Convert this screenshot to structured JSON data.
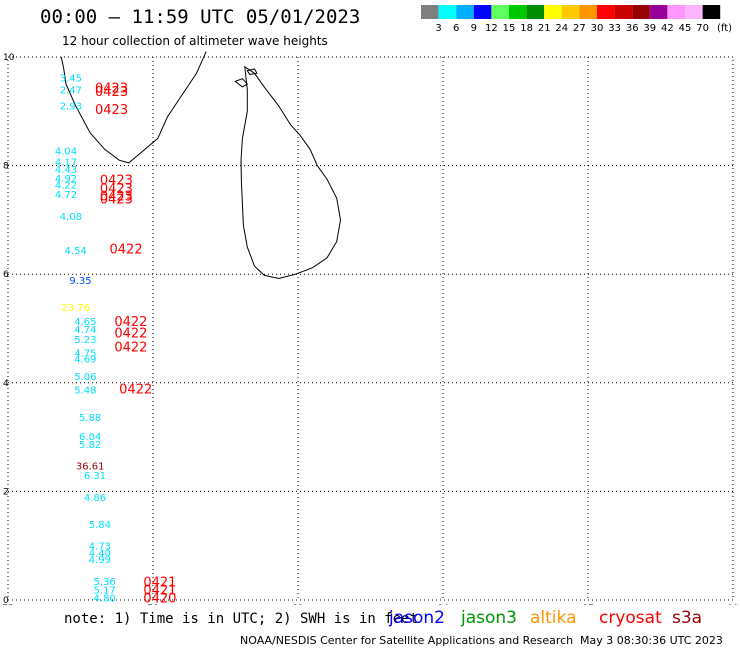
{
  "title": "00:00 – 11:59 UTC 05/01/2023",
  "subtitle": "12 hour collection of altimeter wave heights",
  "colorbar": {
    "unit": "(ft)",
    "colors": [
      "#808080",
      "#00ffff",
      "#00b0ff",
      "#0000ff",
      "#60ff60",
      "#00c800",
      "#008c00",
      "#ffff00",
      "#ffc800",
      "#ff9600",
      "#ff0000",
      "#c80000",
      "#960000",
      "#960096",
      "#ff96ff",
      "#ffb4ff",
      "#000000"
    ],
    "labels": [
      "3",
      "6",
      "9",
      "12",
      "15",
      "18",
      "21",
      "24",
      "27",
      "30",
      "33",
      "36",
      "39",
      "42",
      "45",
      "70"
    ]
  },
  "map": {
    "lon_range": [
      75,
      90
    ],
    "lat_range": [
      0,
      10
    ],
    "x_ticks": [
      75,
      78,
      81,
      84,
      87,
      90
    ],
    "y_ticks": [
      0,
      2,
      4,
      6,
      8,
      10
    ],
    "x_tick_labels": [
      "75",
      "78",
      "81",
      "84",
      "87",
      "90"
    ],
    "y_tick_labels": [
      "0",
      "2",
      "4",
      "6",
      "8",
      "10"
    ],
    "grid": "dotted",
    "coast_color": "#000000"
  },
  "swh_labels": [
    {
      "text": "3.45",
      "lon": 76.3,
      "lat": 9.55,
      "color": "#00e0ff"
    },
    {
      "text": "2.47",
      "lon": 76.3,
      "lat": 9.33,
      "color": "#00e0ff"
    },
    {
      "text": "2.93",
      "lon": 76.3,
      "lat": 9.03,
      "color": "#00e0ff"
    },
    {
      "text": "4.04",
      "lon": 76.2,
      "lat": 8.2,
      "color": "#00e0ff"
    },
    {
      "text": "4.17",
      "lon": 76.2,
      "lat": 8.0,
      "color": "#00e0ff"
    },
    {
      "text": "4.43",
      "lon": 76.2,
      "lat": 7.86,
      "color": "#00e0ff"
    },
    {
      "text": "4.92",
      "lon": 76.2,
      "lat": 7.7,
      "color": "#00e0ff"
    },
    {
      "text": "4.22",
      "lon": 76.2,
      "lat": 7.58,
      "color": "#00e0ff"
    },
    {
      "text": "4.72",
      "lon": 76.2,
      "lat": 7.4,
      "color": "#00e0ff"
    },
    {
      "text": "4.08",
      "lon": 76.3,
      "lat": 7.0,
      "color": "#00e0ff"
    },
    {
      "text": "4.54",
      "lon": 76.4,
      "lat": 6.37,
      "color": "#00e0ff"
    },
    {
      "text": "9.35",
      "lon": 76.5,
      "lat": 5.82,
      "color": "#0050ff"
    },
    {
      "text": "23.76",
      "lon": 76.4,
      "lat": 5.32,
      "color": "#ffff00"
    },
    {
      "text": "4.65",
      "lon": 76.6,
      "lat": 5.06,
      "color": "#00e0ff"
    },
    {
      "text": "4.74",
      "lon": 76.6,
      "lat": 4.92,
      "color": "#00e0ff"
    },
    {
      "text": "5.23",
      "lon": 76.6,
      "lat": 4.73,
      "color": "#00e0ff"
    },
    {
      "text": "4.75",
      "lon": 76.6,
      "lat": 4.48,
      "color": "#00e0ff"
    },
    {
      "text": "4.69",
      "lon": 76.6,
      "lat": 4.37,
      "color": "#00e0ff"
    },
    {
      "text": "5.06",
      "lon": 76.6,
      "lat": 4.05,
      "color": "#00e0ff"
    },
    {
      "text": "5.48",
      "lon": 76.6,
      "lat": 3.8,
      "color": "#00e0ff"
    },
    {
      "text": "5.88",
      "lon": 76.7,
      "lat": 3.3,
      "color": "#00e0ff"
    },
    {
      "text": "6.04",
      "lon": 76.7,
      "lat": 2.95,
      "color": "#00e0ff"
    },
    {
      "text": "5.82",
      "lon": 76.7,
      "lat": 2.8,
      "color": "#00e0ff"
    },
    {
      "text": "36.61",
      "lon": 76.7,
      "lat": 2.4,
      "color": "#960000"
    },
    {
      "text": "6.31",
      "lon": 76.8,
      "lat": 2.23,
      "color": "#00e0ff"
    },
    {
      "text": "4.86",
      "lon": 76.8,
      "lat": 1.82,
      "color": "#00e0ff"
    },
    {
      "text": "5.84",
      "lon": 76.9,
      "lat": 1.33,
      "color": "#00e0ff"
    },
    {
      "text": "4.73",
      "lon": 76.9,
      "lat": 0.93,
      "color": "#00e0ff"
    },
    {
      "text": "4.40",
      "lon": 76.9,
      "lat": 0.8,
      "color": "#00e0ff"
    },
    {
      "text": "4.99",
      "lon": 76.9,
      "lat": 0.68,
      "color": "#00e0ff"
    },
    {
      "text": "5.36",
      "lon": 77.0,
      "lat": 0.28,
      "color": "#00e0ff"
    },
    {
      "text": "5.17",
      "lon": 77.0,
      "lat": 0.12,
      "color": "#00e0ff"
    },
    {
      "text": "4.80",
      "lon": 77.0,
      "lat": -0.03,
      "color": "#00e0ff"
    }
  ],
  "time_labels": [
    {
      "text": "0423",
      "lon": 76.8,
      "lat": 9.35,
      "color": "#ff0000"
    },
    {
      "text": "0423",
      "lon": 76.8,
      "lat": 9.28,
      "color": "#ff0000"
    },
    {
      "text": "0423",
      "lon": 76.8,
      "lat": 8.95,
      "color": "#ff0000"
    },
    {
      "text": "0423",
      "lon": 76.9,
      "lat": 7.65,
      "color": "#ff0000"
    },
    {
      "text": "0423",
      "lon": 76.9,
      "lat": 7.5,
      "color": "#ff0000"
    },
    {
      "text": "0423",
      "lon": 76.9,
      "lat": 7.36,
      "color": "#ff0000"
    },
    {
      "text": "0423",
      "lon": 76.9,
      "lat": 7.3,
      "color": "#ff0000"
    },
    {
      "text": "0422",
      "lon": 77.1,
      "lat": 6.38,
      "color": "#ff0000"
    },
    {
      "text": "0422",
      "lon": 77.2,
      "lat": 5.05,
      "color": "#ff0000"
    },
    {
      "text": "0422",
      "lon": 77.2,
      "lat": 4.83,
      "color": "#ff0000"
    },
    {
      "text": "0422",
      "lon": 77.2,
      "lat": 4.58,
      "color": "#ff0000"
    },
    {
      "text": "0422",
      "lon": 77.3,
      "lat": 3.8,
      "color": "#ff0000"
    },
    {
      "text": "0421",
      "lon": 77.8,
      "lat": 0.25,
      "color": "#ff0000"
    },
    {
      "text": "0421",
      "lon": 77.8,
      "lat": 0.1,
      "color": "#ff0000"
    },
    {
      "text": "0420",
      "lon": 77.8,
      "lat": -0.05,
      "color": "#ff0000"
    }
  ],
  "note": "note: 1) Time is in UTC; 2) SWH is in feet",
  "legend": [
    {
      "label": "jason2",
      "color": "#0000ff"
    },
    {
      "label": "jason3",
      "color": "#009600"
    },
    {
      "label": "altika",
      "color": "#ff9600"
    },
    {
      "label": "cryosat",
      "color": "#ff0000"
    },
    {
      "label": "s3a",
      "color": "#960000"
    }
  ],
  "credit": "NOAA/NESDIS Center for Satellite Applications and Research",
  "generated": "May  3 08:30:36 UTC 2023"
}
